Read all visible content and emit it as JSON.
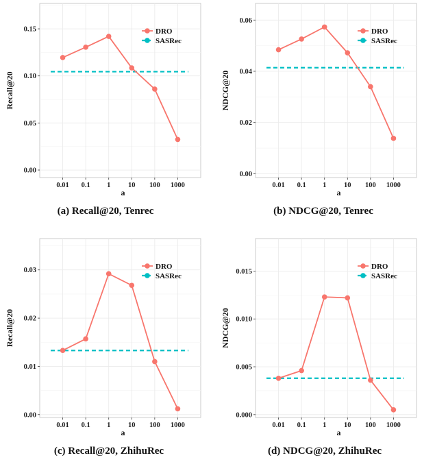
{
  "colors": {
    "dro": "#F8766D",
    "sasrec": "#00BFC4",
    "grid": "#EBEBEB",
    "panel_border": "#BFBFBF"
  },
  "chart_data": [
    {
      "type": "line",
      "caption": "(a) Recall@20, Tenrec",
      "xlabel": "a",
      "ylabel": "Recall@20",
      "categories": [
        "0.01",
        "0.1",
        "1",
        "10",
        "100",
        "1000"
      ],
      "ylim": [
        -0.008,
        0.177
      ],
      "yticks": [
        0.0,
        0.05,
        0.1,
        0.15
      ],
      "yticklabels": [
        "0.00",
        "0.05",
        "0.10",
        "0.15"
      ],
      "legend": "top-right",
      "grid": true,
      "series": [
        {
          "name": "DRO",
          "style": "line-points",
          "values": [
            0.1195,
            0.1305,
            0.142,
            0.1085,
            0.086,
            0.0325
          ]
        },
        {
          "name": "SASRec",
          "style": "dashed",
          "values": [
            0.1045,
            0.1045,
            0.1045,
            0.1045,
            0.1045,
            0.1045
          ]
        }
      ]
    },
    {
      "type": "line",
      "caption": "(b) NDCG@20, Tenrec",
      "xlabel": "a",
      "ylabel": "NDCG@20",
      "categories": [
        "0.01",
        "0.1",
        "1",
        "10",
        "100",
        "1000"
      ],
      "ylim": [
        -0.0015,
        0.0665
      ],
      "yticks": [
        0.0,
        0.02,
        0.04,
        0.06
      ],
      "yticklabels": [
        "0.00",
        "0.02",
        "0.04",
        "0.06"
      ],
      "legend": "top-right",
      "grid": true,
      "series": [
        {
          "name": "DRO",
          "style": "line-points",
          "values": [
            0.0484,
            0.0526,
            0.0573,
            0.0472,
            0.034,
            0.0138
          ]
        },
        {
          "name": "SASRec",
          "style": "dashed",
          "values": [
            0.0414,
            0.0414,
            0.0414,
            0.0414,
            0.0414,
            0.0414
          ]
        }
      ]
    },
    {
      "type": "line",
      "caption": "(c) Recall@20, ZhihuRec",
      "xlabel": "a",
      "ylabel": "Recall@20",
      "categories": [
        "0.01",
        "0.1",
        "1",
        "10",
        "100",
        "1000"
      ],
      "ylim": [
        -0.0006,
        0.0365
      ],
      "yticks": [
        0.0,
        0.01,
        0.02,
        0.03
      ],
      "yticklabels": [
        "0.00",
        "0.01",
        "0.02",
        "0.03"
      ],
      "legend": "top-right",
      "grid": true,
      "series": [
        {
          "name": "DRO",
          "style": "line-points",
          "values": [
            0.0133,
            0.0157,
            0.0292,
            0.0268,
            0.011,
            0.0012
          ]
        },
        {
          "name": "SASRec",
          "style": "dashed",
          "values": [
            0.0133,
            0.0133,
            0.0133,
            0.0133,
            0.0133,
            0.0133
          ]
        }
      ]
    },
    {
      "type": "line",
      "caption": "(d) NDCG@20, ZhihuRec",
      "xlabel": "a",
      "ylabel": "NDCG@20",
      "categories": [
        "0.01",
        "0.1",
        "1",
        "10",
        "100",
        "1000"
      ],
      "ylim": [
        -0.0003,
        0.0184
      ],
      "yticks": [
        0.0,
        0.005,
        0.01,
        0.015
      ],
      "yticklabels": [
        "0.000",
        "0.005",
        "0.010",
        "0.015"
      ],
      "legend": "top-right",
      "grid": true,
      "series": [
        {
          "name": "DRO",
          "style": "line-points",
          "values": [
            0.0038,
            0.0046,
            0.0123,
            0.0122,
            0.0036,
            0.0005
          ]
        },
        {
          "name": "SASRec",
          "style": "dashed",
          "values": [
            0.0038,
            0.0038,
            0.0038,
            0.0038,
            0.0038,
            0.0038
          ]
        }
      ]
    }
  ]
}
